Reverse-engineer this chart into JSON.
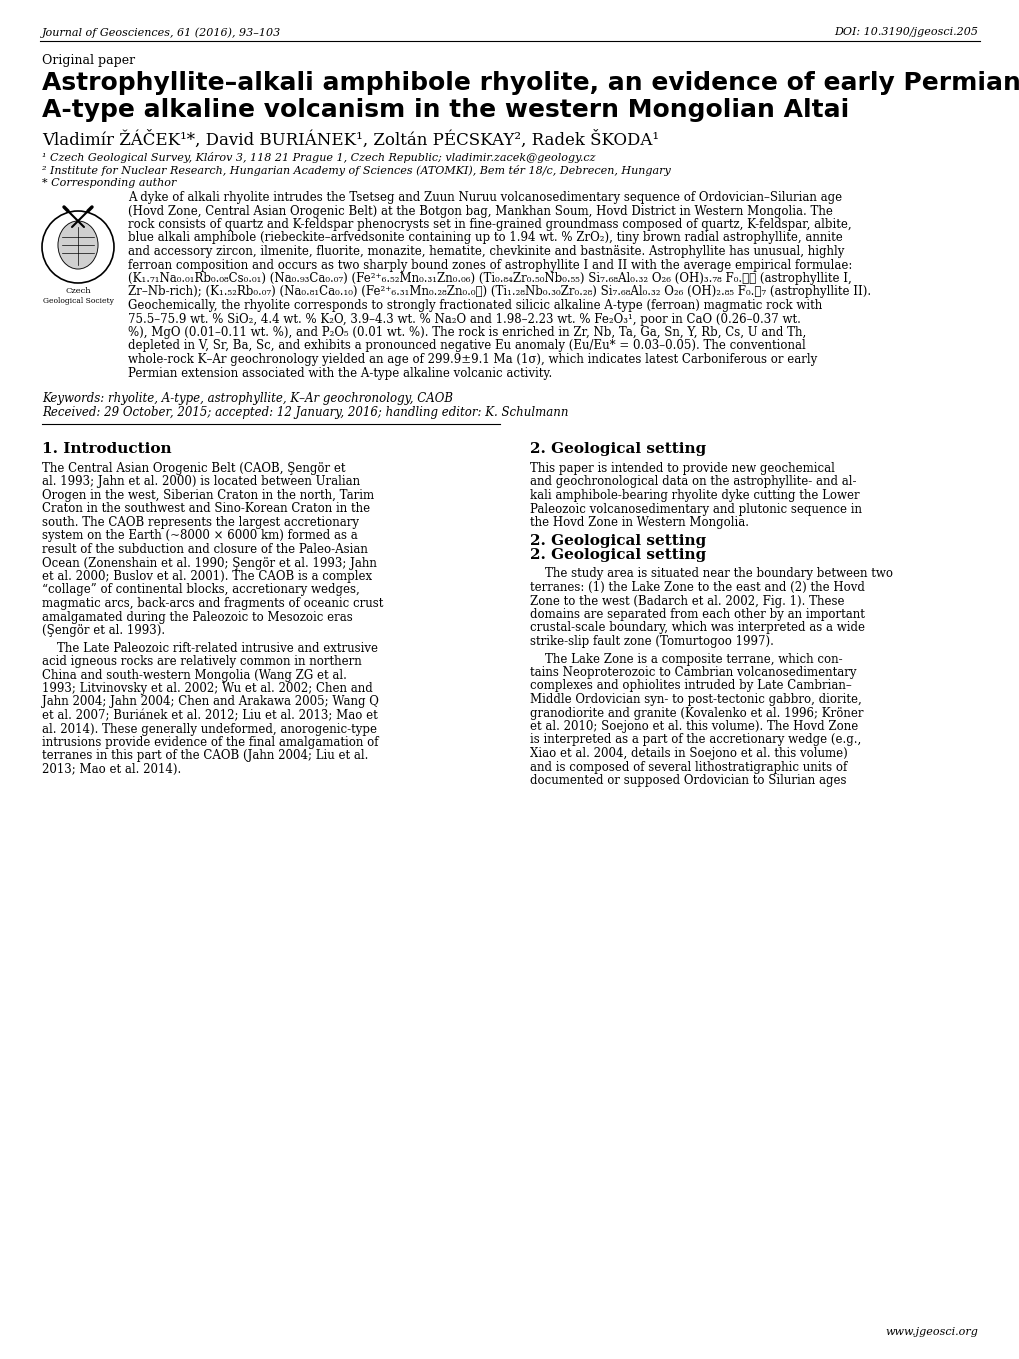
{
  "journal_line": "Journal of Geosciences, 61 (2016), 93–103",
  "doi_line": "DOI: 10.3190/jgeosci.205",
  "label": "Original paper",
  "title_line1": "Astrophyllite–alkali amphibole rhyolite, an evidence of early Permian",
  "title_line2": "A-type alkaline volcanism in the western Mongolian Altai",
  "authors": "Vladimír ŽÁČEK¹*, David BURIÁNEK¹, Zoltán PÉCSKAY², Radek ŠKODA¹",
  "affil1": "¹ Czech Geological Survey, Klárov 3, 118 21 Prague 1, Czech Republic; vladimir.zacek@geology.cz",
  "affil2": "² Institute for Nuclear Research, Hungarian Academy of Sciences (ATOMKI), Bem tér 18/c, Debrecen, Hungary",
  "affil3": "* Corresponding author",
  "abstract_text": "A dyke of alkali rhyolite intrudes the Tsetseg and Zuun Nuruu volcanosedimentary sequence of Ordovician–Silurian age\n(Hovd Zone, Central Asian Orogenic Belt) at the Botgon bag, Mankhan Soum, Hovd District in Western Mongolia. The\nrock consists of quartz and K-feldspar phenocrysts set in fine-grained groundmass composed of quartz, K-feldspar, albite,\nblue alkali amphibole (riebeckite–arfvedsonite containing up to 1.94 wt. % ZrO₂), tiny brown radial astrophyllite, annite\nand accessory zircon, ilmenite, fluorite, monazite, hematite, chevkinite and bastnäsite. Astrophyllite has unusual, highly\nferroan composition and occurs as two sharply bound zones of astrophyllite I and II with the average empirical formulae:\n(K₁.₇₁Na₀.₀₁Rb₀.₀₈Cs₀.₀₁) (Na₀.₉₃Ca₀.₀₇) (Fe²⁺₆.₅₂Mn₀.₃₁Zn₀.₀₆) (Ti₀.₈₄Zr₀.₅₀Nb₀.₅₅) Si₇.₆₈Al₀.₃₂ O₂₆ (OH)₃.₇₈ F₀.⁦⁦ (astrophyllite I,\nZr–Nb-rich); (K₁.₅₂Rb₀.₀₇) (Na₀.₈₁Ca₀.₁₀) (Fe²⁺₆.₃₁Mn₀.₂₈Zn₀.₀⁦) (Ti₁.₂₈Nb₀.₃₀Zr₀.₂₈) Si₇.₆₈Al₀.₃₂ O₂₆ (OH)₂.₈₅ F₀.⁦₇ (astrophyllite II).\nGeochemically, the rhyolite corresponds to strongly fractionated silicic alkaline A-type (ferroan) magmatic rock with\n75.5–75.9 wt. % SiO₂, 4.4 wt. % K₂O, 3.9–4.3 wt. % Na₂O and 1.98–2.23 wt. % Fe₂O₃¹, poor in CaO (0.26–0.37 wt.\n%), MgO (0.01–0.11 wt. %), and P₂O₅ (0.01 wt. %). The rock is enriched in Zr, Nb, Ta, Ga, Sn, Y, Rb, Cs, U and Th,\ndepleted in V, Sr, Ba, Sc, and exhibits a pronounced negative Eu anomaly (Eu/Eu* = 0.03–0.05). The conventional\nwhole-rock K–Ar geochronology yielded an age of 299.9±9.1 Ma (1σ), which indicates latest Carboniferous or early\nPermian extension associated with the A-type alkaline volcanic activity.",
  "keywords_line1": "Keywords: rhyolite, A-type, astrophyllite, K–Ar geochronology, CAOB",
  "keywords_line2": "Received: 29 October, 2015; accepted: 12 January, 2016; handling editor: K. Schulmann",
  "section1_title": "1. Introduction",
  "section1_p1": "The Central Asian Orogenic Belt (CAOB, Şengör et\nal. 1993; Jahn et al. 2000) is located between Uralian\nOrogen in the west, Siberian Craton in the north, Tarim\nCraton in the southwest and Sino-Korean Craton in the\nsouth. The CAOB represents the largest accretionary\nsystem on the Earth (~8000 × 6000 km) formed as a\nresult of the subduction and closure of the Paleo-Asian\nOcean (Zonenshain et al. 1990; Şengör et al. 1993; Jahn\net al. 2000; Buslov et al. 2001). The CAOB is a complex\n“collage” of continental blocks, accretionary wedges,\nmagmatic arcs, back-arcs and fragments of oceanic crust\namalgamated during the Paleozoic to Mesozoic eras\n(Şengör et al. 1993).",
  "section1_p2": "    The Late Paleozoic rift-related intrusive and extrusive\nacid igneous rocks are relatively common in northern\nChina and south-western Mongolia (Wang ZG et al.\n1993; Litvinovsky et al. 2002; Wu et al. 2002; Chen and\nJahn 2004; Jahn 2004; Chen and Arakawa 2005; Wang Q\net al. 2007; Buriánek et al. 2012; Liu et al. 2013; Mao et\nal. 2014). These generally undeformed, anorogenic-type\nintrusions provide evidence of the final amalgamation of\nterranes in this part of the CAOB (Jahn 2004; Liu et al.\n2013; Mao et al. 2014).",
  "section2_title": "2. Geological setting",
  "section2_p1": "This paper is intended to provide new geochemical\nand geochronological data on the astrophyllite- and al-\nkali amphibole-bearing rhyolite dyke cutting the Lower\nPaleozoic volcanosedimentary and plutonic sequence in\nthe Hovd Zone in Western Mongolia.",
  "section2_p2": "    The study area is situated near the boundary between two\nterranes: (1) the Lake Zone to the east and (2) the Hovd\nZone to the west (Badarch et al. 2002, Fig. 1). These\ndomains are separated from each other by an important\ncrustal-scale boundary, which was interpreted as a wide\nstrike-slip fault zone (Tomurtogoo 1997).",
  "section2_p3": "    The Lake Zone is a composite terrane, which con-\ntains Neoproterozoic to Cambrian volcanosedimentary\ncomplexes and ophiolites intruded by Late Cambrian–\nMiddle Ordovician syn- to post-tectonic gabbro, diorite,\ngranodiorite and granite (Kovalenko et al. 1996; Kröner\net al. 2010; Soejono et al. this volume). The Hovd Zone\nis interpreted as a part of the accretionary wedge (e.g.,\nXiao et al. 2004, details in Soejono et al. this volume)\nand is composed of several lithostratigraphic units of\ndocumented or supposed Ordovician to Silurian ages",
  "website": "www.jgeosci.org",
  "bg_color": "#ffffff"
}
